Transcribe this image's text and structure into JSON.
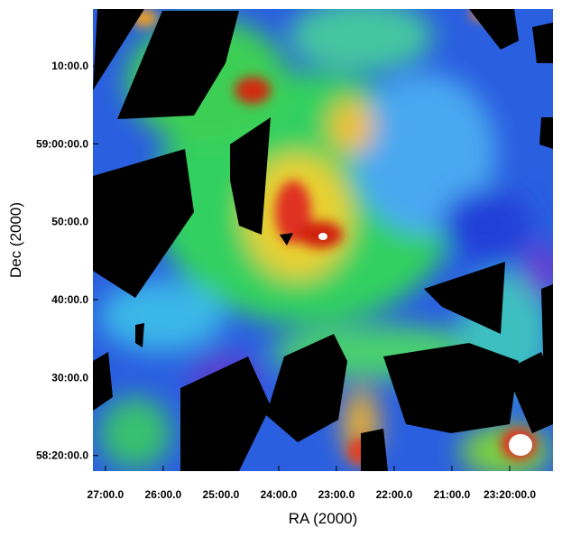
{
  "chart_data": {
    "type": "image",
    "xlabel": "RA (2000)",
    "ylabel": "Dec (2000)",
    "xlim": [
      1633,
      1155
    ],
    "ylim": [
      18.0,
      77.3
    ],
    "xticks": [
      {
        "value": 1620,
        "label": "27:00.0"
      },
      {
        "value": 1560,
        "label": "26:00.0"
      },
      {
        "value": 1500,
        "label": "25:00.0"
      },
      {
        "value": 1440,
        "label": "24:00.0"
      },
      {
        "value": 1380,
        "label": "23:00.0"
      },
      {
        "value": 1320,
        "label": "22:00.0"
      },
      {
        "value": 1260,
        "label": "21:00.0"
      },
      {
        "value": 1200,
        "label": "23:20:00.0"
      }
    ],
    "yticks": [
      {
        "value": 20,
        "label": "58:20:00.0"
      },
      {
        "value": 30,
        "label": "30:00.0"
      },
      {
        "value": 40,
        "label": "40:00.0"
      },
      {
        "value": 50,
        "label": "50:00.0"
      },
      {
        "value": 60,
        "label": "59:00:00.0"
      },
      {
        "value": 70,
        "label": "10:00.0"
      }
    ]
  }
}
